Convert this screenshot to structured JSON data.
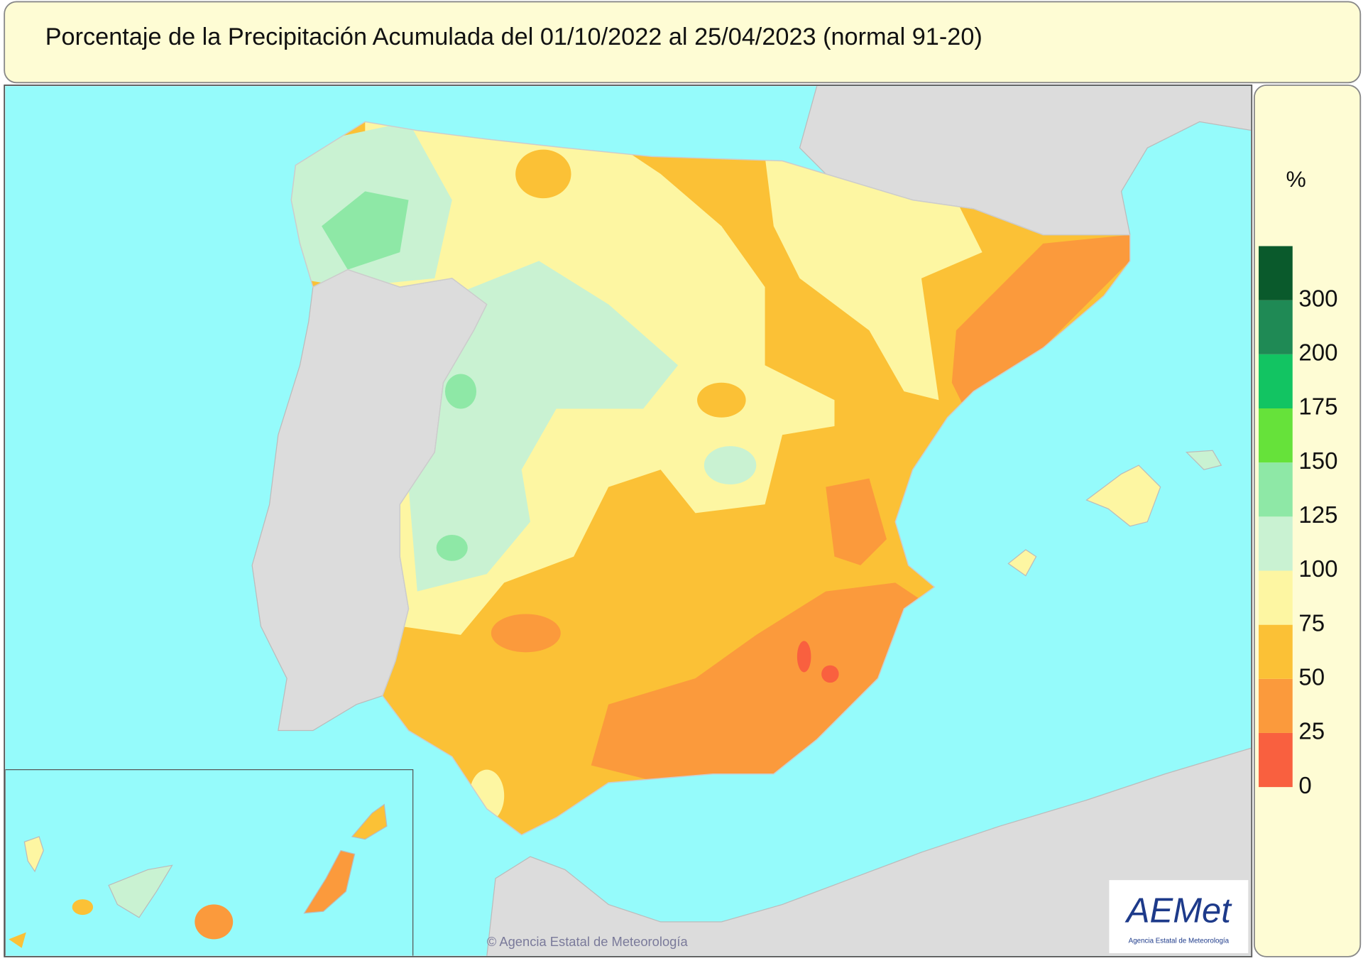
{
  "header": {
    "title": "Porcentaje de la Precipitación Acumulada del 01/10/2022 al 25/04/2023 (normal 91-20)"
  },
  "legend": {
    "unit": "%",
    "ticks": [
      0,
      25,
      50,
      75,
      100,
      125,
      150,
      175,
      200,
      300
    ],
    "colors": [
      "#f9603f",
      "#fb9a3c",
      "#fbc136",
      "#fdf6a2",
      "#c9f2d2",
      "#8ee8a6",
      "#66e23a",
      "#12c462",
      "#1f8a55",
      "#0a5a2c"
    ]
  },
  "credit": "© Agencia Estatal de Meteorología",
  "logo": {
    "text": "AEMet",
    "subtitle": "Agencia Estatal de Meteorología"
  }
}
